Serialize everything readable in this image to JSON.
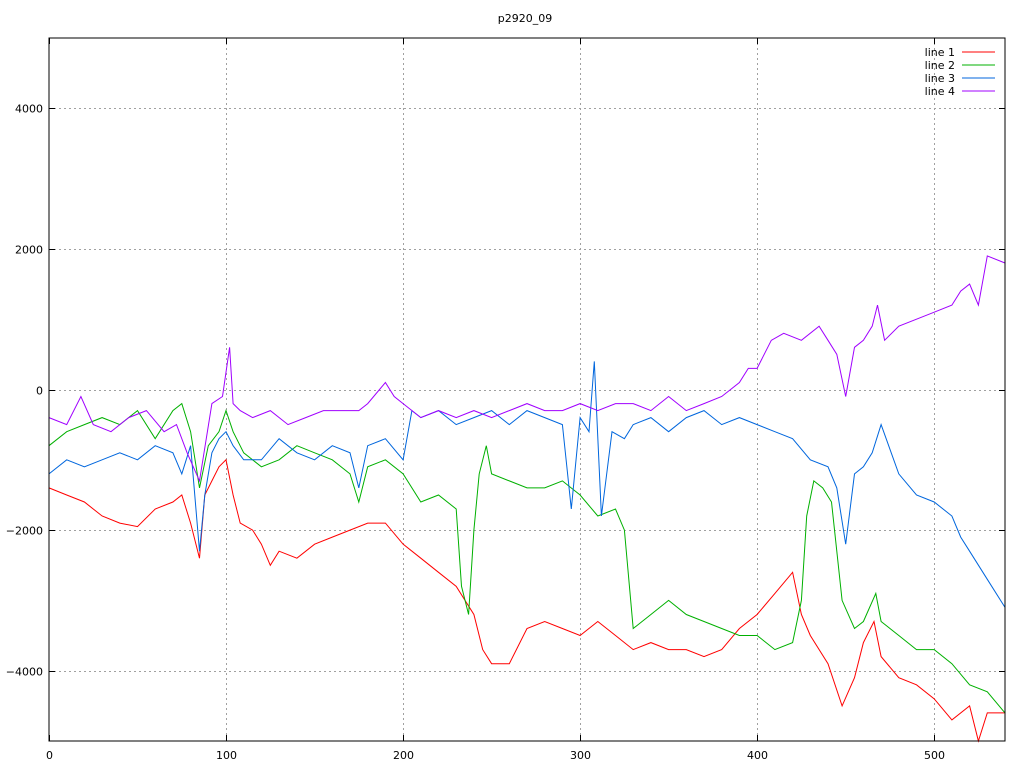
{
  "chart_data": {
    "type": "line",
    "title": "p2920_09",
    "xlabel": "",
    "ylabel": "",
    "xlim": [
      0,
      540
    ],
    "ylim": [
      -5000,
      5000
    ],
    "grid": true,
    "legend_position": "top-right",
    "x_ticks": [
      0,
      100,
      200,
      300,
      400,
      500
    ],
    "y_ticks": [
      -4000,
      -2000,
      0,
      2000,
      4000
    ],
    "x_tick_labels": [
      "0",
      "100",
      "200",
      "300",
      "400",
      "500"
    ],
    "y_tick_labels": [
      "−4000",
      "−2000",
      "0",
      "2000",
      "4000"
    ],
    "series": [
      {
        "name": "line 1",
        "color": "#ff0000",
        "x": [
          0,
          10,
          20,
          30,
          40,
          50,
          60,
          70,
          75,
          80,
          85,
          88,
          92,
          96,
          100,
          104,
          108,
          115,
          120,
          125,
          130,
          140,
          150,
          160,
          170,
          180,
          190,
          200,
          210,
          220,
          230,
          240,
          245,
          250,
          260,
          270,
          280,
          290,
          300,
          310,
          320,
          330,
          340,
          350,
          360,
          370,
          380,
          390,
          400,
          410,
          420,
          425,
          430,
          440,
          448,
          455,
          460,
          466,
          470,
          480,
          490,
          500,
          510,
          520,
          525,
          530,
          540
        ],
        "y": [
          -1400,
          -1500,
          -1600,
          -1800,
          -1900,
          -1950,
          -1700,
          -1600,
          -1500,
          -1900,
          -2400,
          -1500,
          -1300,
          -1100,
          -1000,
          -1500,
          -1900,
          -2000,
          -2200,
          -2500,
          -2300,
          -2400,
          -2200,
          -2100,
          -2000,
          -1900,
          -1900,
          -2200,
          -2400,
          -2600,
          -2800,
          -3200,
          -3700,
          -3900,
          -3900,
          -3400,
          -3300,
          -3400,
          -3500,
          -3300,
          -3500,
          -3700,
          -3600,
          -3700,
          -3700,
          -3800,
          -3700,
          -3400,
          -3200,
          -2900,
          -2600,
          -3200,
          -3500,
          -3900,
          -4500,
          -4100,
          -3600,
          -3300,
          -3800,
          -4100,
          -4200,
          -4400,
          -4700,
          -4500,
          -5000,
          -4600,
          -4600
        ]
      },
      {
        "name": "line 2",
        "color": "#00b000",
        "x": [
          0,
          10,
          20,
          30,
          40,
          50,
          60,
          70,
          75,
          80,
          85,
          90,
          96,
          100,
          104,
          110,
          120,
          130,
          140,
          150,
          160,
          170,
          175,
          180,
          190,
          200,
          210,
          220,
          230,
          233,
          237,
          240,
          243,
          247,
          250,
          260,
          270,
          280,
          290,
          300,
          310,
          320,
          325,
          330,
          340,
          350,
          360,
          370,
          380,
          390,
          400,
          410,
          420,
          425,
          428,
          432,
          437,
          442,
          448,
          455,
          460,
          467,
          470,
          480,
          490,
          500,
          510,
          520,
          530,
          540
        ],
        "y": [
          -800,
          -600,
          -500,
          -400,
          -500,
          -300,
          -700,
          -300,
          -200,
          -600,
          -1400,
          -800,
          -600,
          -300,
          -600,
          -900,
          -1100,
          -1000,
          -800,
          -900,
          -1000,
          -1200,
          -1600,
          -1100,
          -1000,
          -1200,
          -1600,
          -1500,
          -1700,
          -2800,
          -3200,
          -2000,
          -1200,
          -800,
          -1200,
          -1300,
          -1400,
          -1400,
          -1300,
          -1500,
          -1800,
          -1700,
          -2000,
          -3400,
          -3200,
          -3000,
          -3200,
          -3300,
          -3400,
          -3500,
          -3500,
          -3700,
          -3600,
          -3000,
          -1800,
          -1300,
          -1400,
          -1600,
          -3000,
          -3400,
          -3300,
          -2900,
          -3300,
          -3500,
          -3700,
          -3700,
          -3900,
          -4200,
          -4300,
          -4600
        ]
      },
      {
        "name": "line 3",
        "color": "#0066dd",
        "x": [
          0,
          10,
          20,
          30,
          40,
          50,
          60,
          70,
          75,
          80,
          85,
          88,
          92,
          96,
          100,
          104,
          110,
          120,
          130,
          140,
          150,
          160,
          170,
          175,
          180,
          190,
          200,
          205,
          210,
          220,
          230,
          240,
          250,
          260,
          270,
          280,
          290,
          295,
          300,
          305,
          308,
          312,
          318,
          325,
          330,
          340,
          350,
          360,
          370,
          380,
          390,
          400,
          410,
          420,
          430,
          440,
          445,
          450,
          455,
          460,
          465,
          470,
          480,
          490,
          500,
          510,
          515,
          520,
          530,
          540
        ],
        "y": [
          -1200,
          -1000,
          -1100,
          -1000,
          -900,
          -1000,
          -800,
          -900,
          -1200,
          -800,
          -2300,
          -1500,
          -900,
          -700,
          -600,
          -800,
          -1000,
          -1000,
          -700,
          -900,
          -1000,
          -800,
          -900,
          -1400,
          -800,
          -700,
          -1000,
          -300,
          -400,
          -300,
          -500,
          -400,
          -300,
          -500,
          -300,
          -400,
          -500,
          -1700,
          -400,
          -600,
          400,
          -1800,
          -600,
          -700,
          -500,
          -400,
          -600,
          -400,
          -300,
          -500,
          -400,
          -500,
          -600,
          -700,
          -1000,
          -1100,
          -1400,
          -2200,
          -1200,
          -1100,
          -900,
          -500,
          -1200,
          -1500,
          -1600,
          -1800,
          -2100,
          -2300,
          -2700,
          -3100
        ]
      },
      {
        "name": "line 4",
        "color": "#a000ff",
        "x": [
          0,
          10,
          18,
          25,
          35,
          45,
          55,
          65,
          72,
          78,
          85,
          92,
          98,
          102,
          104,
          108,
          115,
          125,
          135,
          145,
          155,
          165,
          175,
          180,
          190,
          195,
          200,
          210,
          220,
          230,
          240,
          250,
          260,
          270,
          280,
          290,
          300,
          310,
          320,
          330,
          340,
          350,
          360,
          370,
          380,
          385,
          390,
          395,
          400,
          408,
          415,
          425,
          435,
          440,
          445,
          450,
          455,
          460,
          465,
          468,
          472,
          480,
          490,
          500,
          510,
          515,
          520,
          525,
          530,
          540
        ],
        "y": [
          -400,
          -500,
          -100,
          -500,
          -600,
          -400,
          -300,
          -600,
          -500,
          -900,
          -1300,
          -200,
          -100,
          600,
          -200,
          -300,
          -400,
          -300,
          -500,
          -400,
          -300,
          -300,
          -300,
          -200,
          100,
          -100,
          -200,
          -400,
          -300,
          -400,
          -300,
          -400,
          -300,
          -200,
          -300,
          -300,
          -200,
          -300,
          -200,
          -200,
          -300,
          -100,
          -300,
          -200,
          -100,
          0,
          100,
          300,
          300,
          700,
          800,
          700,
          900,
          700,
          500,
          -100,
          600,
          700,
          900,
          1200,
          700,
          900,
          1000,
          1100,
          1200,
          1400,
          1500,
          1200,
          1900,
          1800
        ]
      }
    ]
  }
}
